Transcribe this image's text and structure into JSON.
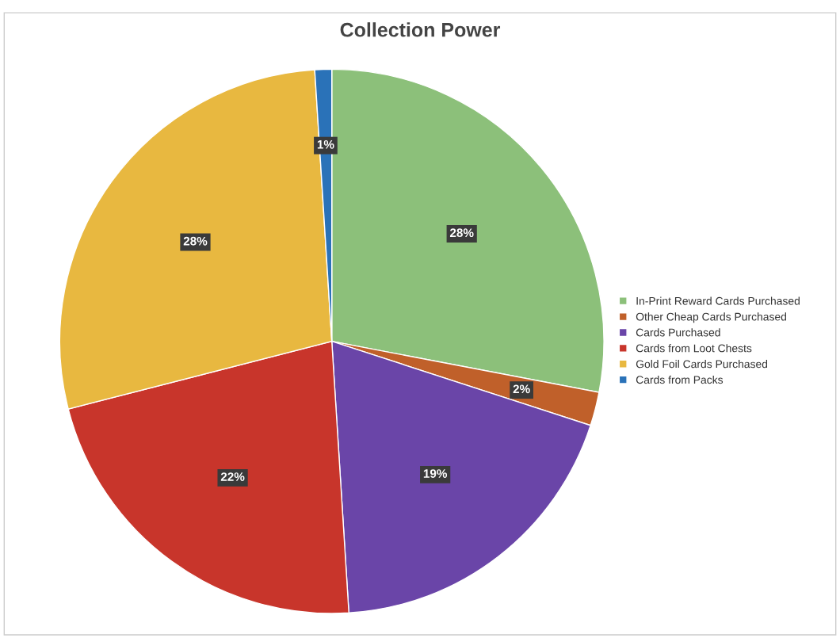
{
  "chart_data": {
    "type": "pie",
    "title": "Collection Power",
    "categories": [
      "In-Print Reward Cards Purchased",
      "Other Cheap Cards Purchased",
      "Cards Purchased",
      "Cards from Loot Chests",
      "Gold Foil Cards Purchased",
      "Cards from Packs"
    ],
    "values": [
      28,
      2,
      19,
      22,
      28,
      1
    ],
    "colors": [
      "#8cc07a",
      "#c0602a",
      "#6a45a8",
      "#c8352b",
      "#e8b840",
      "#2a72b8"
    ],
    "value_labels": [
      "28%",
      "2%",
      "19%",
      "22%",
      "28%",
      "1%"
    ],
    "legend": "right"
  }
}
